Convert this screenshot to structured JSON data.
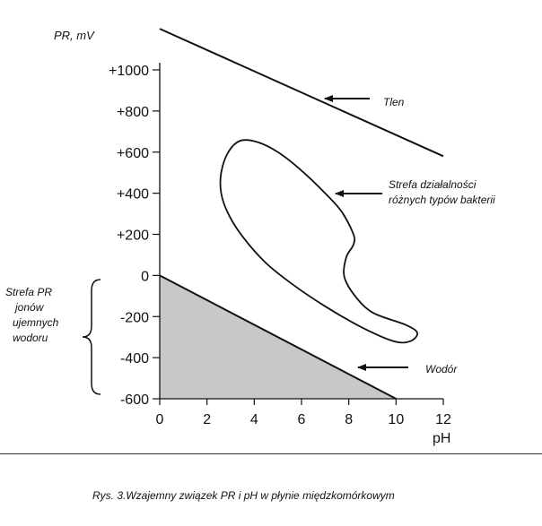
{
  "chart_data": {
    "type": "line",
    "ylabel": "PR, mV",
    "xlabel": "pH",
    "xlim": [
      0,
      12
    ],
    "ylim": [
      -600,
      1000
    ],
    "x_ticks": [
      0,
      2,
      4,
      6,
      8,
      10,
      12
    ],
    "y_ticks": [
      1000,
      800,
      600,
      400,
      200,
      0,
      -200,
      -400,
      -600
    ],
    "y_tick_labels": [
      "+1000",
      "+800",
      "+600",
      "+400",
      "+200",
      "0",
      "-200",
      "-400",
      "-600"
    ],
    "series": [
      {
        "name": "Tlen",
        "points": [
          [
            0,
            1200
          ],
          [
            12,
            580
          ]
        ]
      },
      {
        "name": "Wodór",
        "points": [
          [
            0,
            0
          ],
          [
            10,
            -600
          ]
        ],
        "fill": "#c8c8c8"
      }
    ],
    "region": {
      "name": "Strefa działalności różnych typów bakterii",
      "points": [
        [
          2.6,
          500
        ],
        [
          2.9,
          600
        ],
        [
          3.4,
          655
        ],
        [
          4.1,
          650
        ],
        [
          5.0,
          600
        ],
        [
          6.0,
          510
        ],
        [
          7.0,
          400
        ],
        [
          7.7,
          310
        ],
        [
          8.2,
          200
        ],
        [
          8.2,
          150
        ],
        [
          7.9,
          90
        ],
        [
          7.8,
          0
        ],
        [
          8.2,
          -90
        ],
        [
          9.0,
          -180
        ],
        [
          10.4,
          -240
        ],
        [
          10.9,
          -280
        ],
        [
          10.6,
          -320
        ],
        [
          9.9,
          -320
        ],
        [
          8.5,
          -250
        ],
        [
          7.0,
          -150
        ],
        [
          5.7,
          -50
        ],
        [
          4.5,
          60
        ],
        [
          3.5,
          190
        ],
        [
          2.9,
          300
        ],
        [
          2.6,
          400
        ]
      ]
    },
    "annotations": [
      {
        "id": "tlen",
        "text": "Tlen"
      },
      {
        "id": "bacteria",
        "lines": [
          "Strefa działalności",
          "różnych typów bakterii"
        ]
      },
      {
        "id": "wodor",
        "text": "Wodór"
      },
      {
        "id": "negative_zone",
        "lines": [
          "Strefa PR",
          "jonów",
          "ujemnych",
          "wodoru"
        ]
      }
    ]
  },
  "caption": "Rys. 3.Wzajemny związek PR i pH w płynie międzkomórkowym"
}
